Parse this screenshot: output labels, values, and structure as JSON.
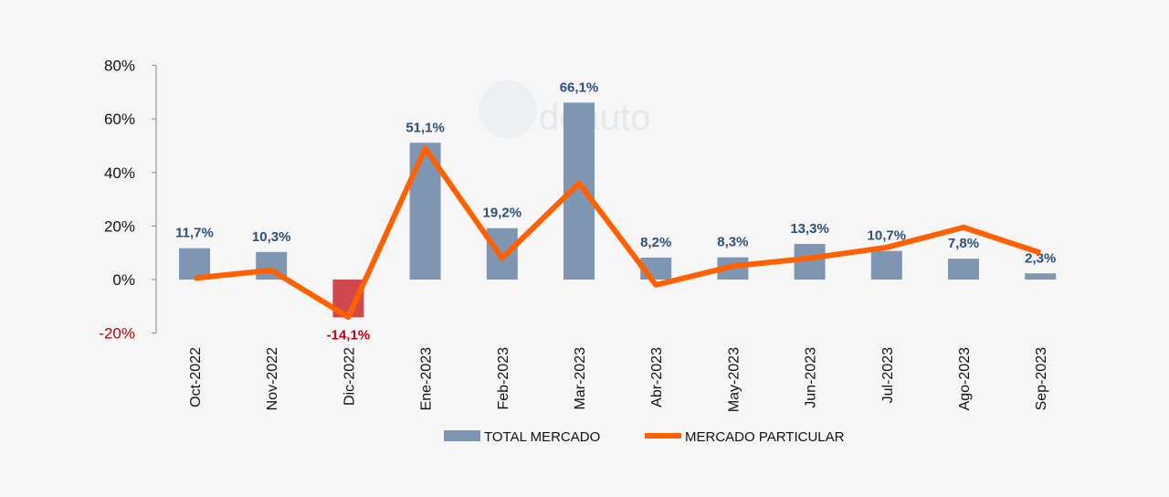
{
  "chart_data": {
    "type": "bar",
    "categories": [
      "Oct-2022",
      "Nov-2022",
      "Dic-2022",
      "Ene-2023",
      "Feb-2023",
      "Mar-2023",
      "Abr-2023",
      "May-2023",
      "Jun-2023",
      "Jul-2023",
      "Ago-2023",
      "Sep-2023"
    ],
    "series": [
      {
        "name": "TOTAL MERCADO",
        "type": "bar",
        "color": "#7f96b2",
        "negative_color": "#d0474d",
        "values": [
          11.7,
          10.3,
          -14.1,
          51.1,
          19.2,
          66.1,
          8.2,
          8.3,
          13.3,
          10.7,
          7.8,
          2.3
        ],
        "labels": [
          "11,7%",
          "10,3%",
          "-14,1%",
          "51,1%",
          "19,2%",
          "66,1%",
          "8,2%",
          "8,3%",
          "13,3%",
          "10,7%",
          "7,8%",
          "2,3%"
        ]
      },
      {
        "name": "MERCADO PARTICULAR",
        "type": "line",
        "color": "#ff6000",
        "values": [
          0.5,
          3.5,
          -14,
          49,
          8,
          36,
          -2,
          5,
          8,
          12,
          19.5,
          10
        ]
      }
    ],
    "yticks": [
      "80%",
      "60%",
      "40%",
      "20%",
      "0%",
      "-20%"
    ],
    "ytick_values": [
      80,
      60,
      40,
      20,
      0,
      -20
    ],
    "ylim": [
      -20,
      80
    ],
    "grid": false,
    "legend": "bottom",
    "title": "",
    "xlabel": "",
    "ylabel": ""
  },
  "watermark": {
    "text": "ideauto"
  }
}
